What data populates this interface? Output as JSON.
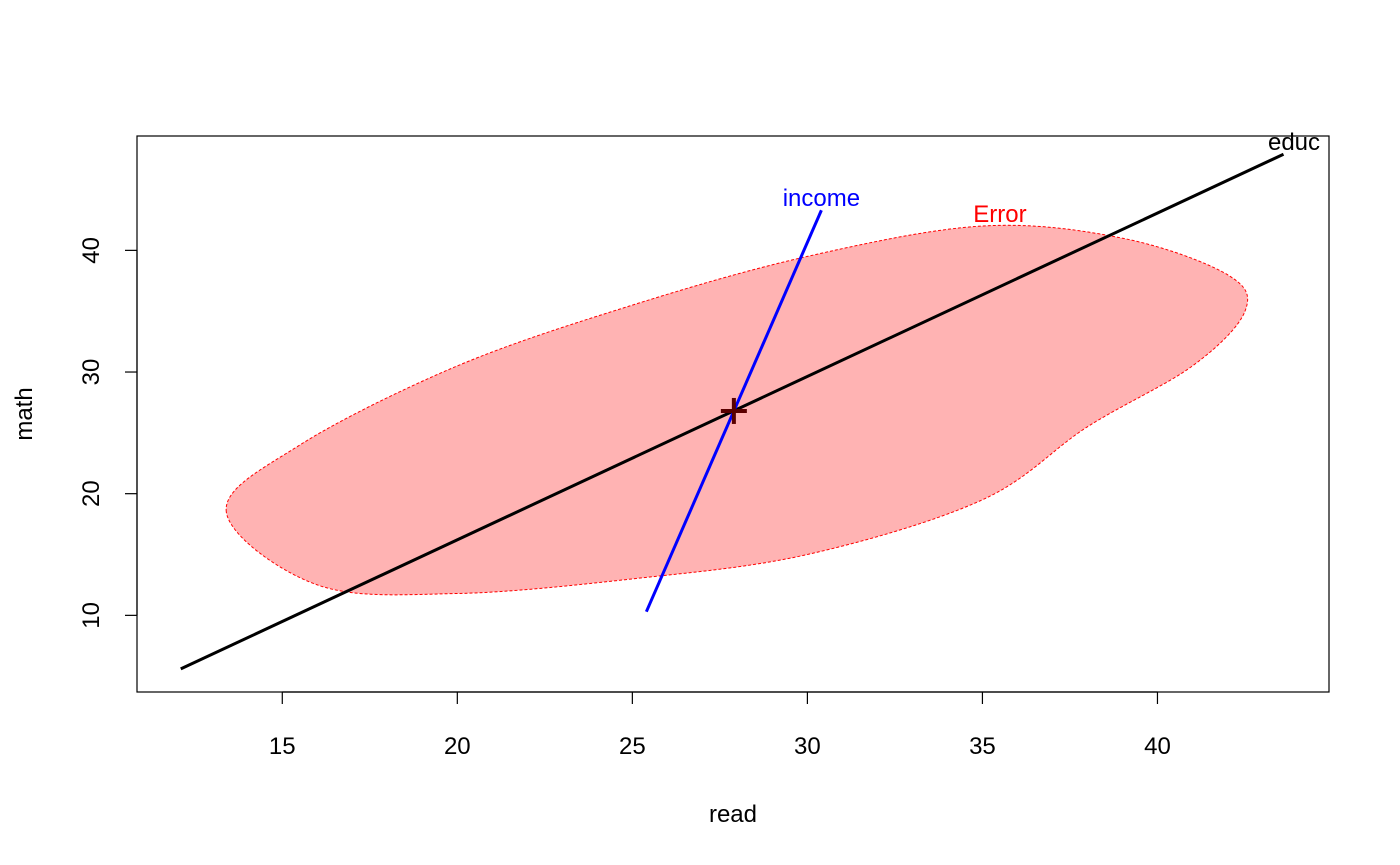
{
  "chart_data": {
    "type": "scatter",
    "title": "",
    "xlabel": "read",
    "ylabel": "math",
    "xlim": [
      10.85,
      44.9
    ],
    "ylim": [
      3.7,
      49.4
    ],
    "grid": false,
    "x_ticks": [
      15,
      20,
      25,
      30,
      35,
      40
    ],
    "y_ticks": [
      10,
      20,
      30,
      40
    ],
    "center": {
      "x": 27.9,
      "y": 26.8
    },
    "error_ellipse": {
      "name": "Error",
      "color": "#ff0000",
      "fill": "#ffb3b3",
      "label_at": [
        35.5,
        43.0
      ],
      "center": [
        28.2,
        26.9
      ],
      "points": [
        [
          13.4,
          18.5
        ],
        [
          15.5,
          24.0
        ],
        [
          20.0,
          30.5
        ],
        [
          25.0,
          35.5
        ],
        [
          30.0,
          39.5
        ],
        [
          35.0,
          42.0
        ],
        [
          39.0,
          41.0
        ],
        [
          42.0,
          38.0
        ],
        [
          42.5,
          35.0
        ],
        [
          41.0,
          30.5
        ],
        [
          38.0,
          25.5
        ],
        [
          35.0,
          19.5
        ],
        [
          30.0,
          15.0
        ],
        [
          25.0,
          13.0
        ],
        [
          20.0,
          11.8
        ],
        [
          16.0,
          12.5
        ]
      ]
    },
    "lines": [
      {
        "name": "educ",
        "color": "#000000",
        "from": [
          12.1,
          5.6
        ],
        "to": [
          43.6,
          47.9
        ],
        "label_at": [
          43.9,
          48.9
        ]
      },
      {
        "name": "income",
        "color": "#0000ff",
        "from": [
          25.4,
          10.3
        ],
        "to": [
          30.4,
          43.3
        ],
        "label_at": [
          30.4,
          44.3
        ]
      }
    ]
  }
}
